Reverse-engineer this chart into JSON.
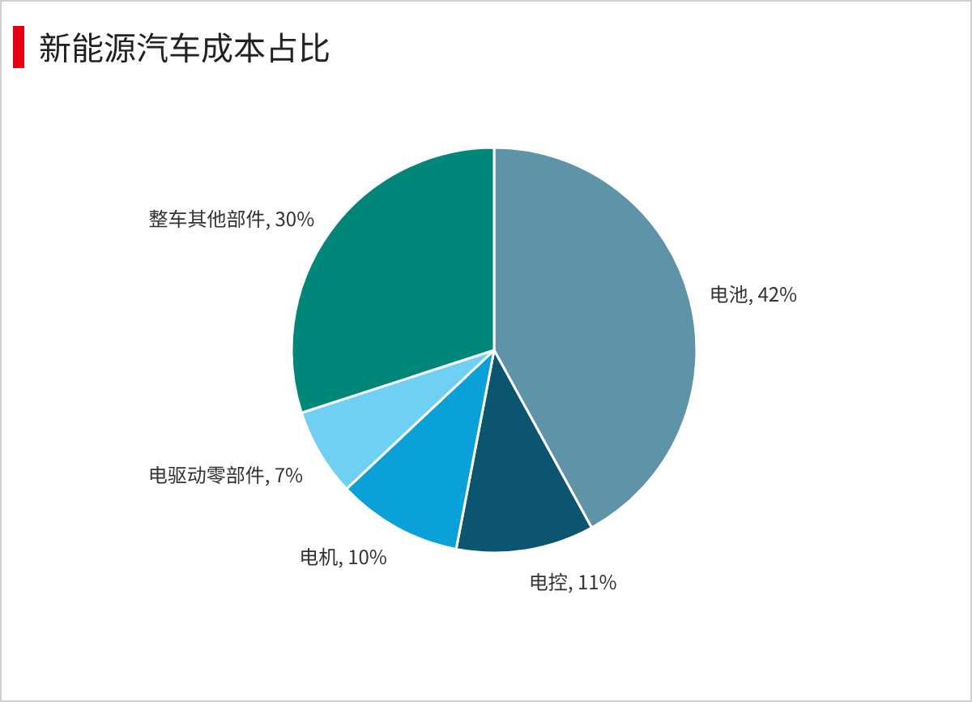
{
  "chart_data": {
    "type": "pie",
    "title": "新能源汽车成本占比",
    "categories": [
      "电池",
      "电控",
      "电机",
      "电驱动零部件",
      "整车其他部件"
    ],
    "values": [
      42,
      11,
      10,
      7,
      30
    ],
    "colors": [
      "#5f93a8",
      "#0b5570",
      "#0aa0d8",
      "#6fd0f4",
      "#00877a"
    ],
    "value_labels": [
      ", 42%",
      ", 11%",
      ", 10%",
      ", 7%",
      ", 30%"
    ]
  }
}
